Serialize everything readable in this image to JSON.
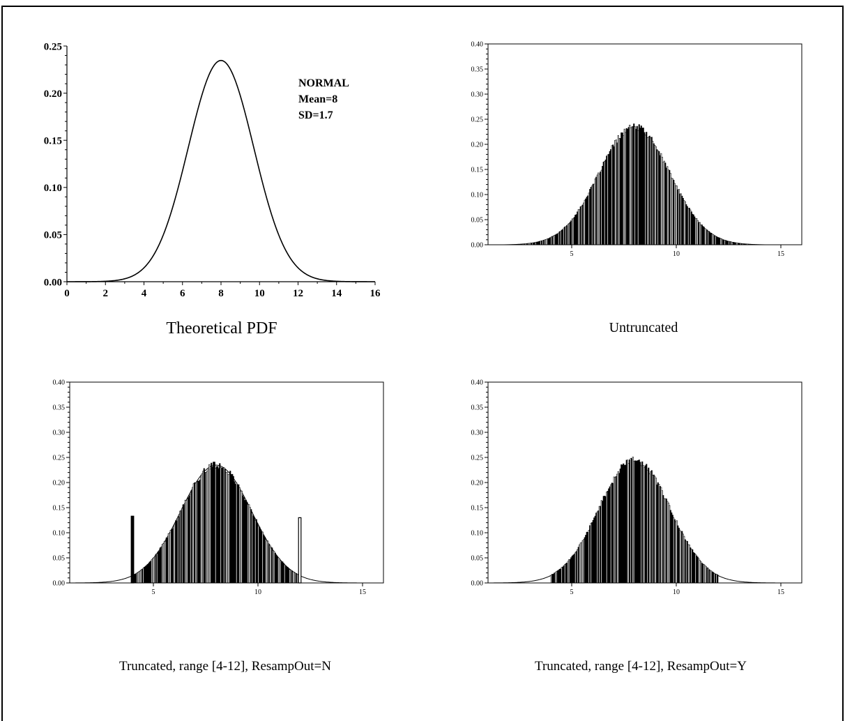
{
  "chart_data": [
    {
      "type": "line",
      "title": "Theoretical PDF",
      "xlabel": "",
      "ylabel": "",
      "xlim": [
        0,
        16
      ],
      "ylim": [
        0,
        0.25
      ],
      "xticks": [
        "0",
        "2",
        "4",
        "6",
        "8",
        "10",
        "12",
        "14",
        "16"
      ],
      "yticks": [
        "0.00",
        "0.05",
        "0.10",
        "0.15",
        "0.20",
        "0.25"
      ],
      "annotations": [
        "NORMAL",
        "Mean=8",
        "SD=1.7"
      ],
      "distribution": {
        "mean": 8,
        "sd": 1.7
      },
      "grid": false
    },
    {
      "type": "bar",
      "title": "Untruncated",
      "xlim": [
        1,
        16
      ],
      "ylim": [
        0,
        0.4
      ],
      "xticks": [
        "5",
        "10",
        "15"
      ],
      "yticks": [
        "0.00",
        "0.05",
        "0.10",
        "0.15",
        "0.20",
        "0.25",
        "0.30",
        "0.35",
        "0.40"
      ],
      "histogram": {
        "mean": 8,
        "sd": 1.7,
        "range": [
          1,
          15.5
        ],
        "truncated": false,
        "edge_spikes": []
      },
      "grid": false
    },
    {
      "type": "bar",
      "title": "Truncated, range [4-12], ResampOut=N",
      "xlim": [
        1,
        16
      ],
      "ylim": [
        0,
        0.4
      ],
      "xticks": [
        "5",
        "10",
        "15"
      ],
      "yticks": [
        "0.00",
        "0.05",
        "0.10",
        "0.15",
        "0.20",
        "0.25",
        "0.30",
        "0.35",
        "0.40"
      ],
      "histogram": {
        "mean": 8,
        "sd": 1.7,
        "range": [
          4,
          12
        ],
        "truncated": true,
        "edge_spikes": [
          {
            "x": 4.0,
            "value": 0.133
          },
          {
            "x": 12.0,
            "value": 0.13
          }
        ]
      },
      "envelope": {
        "mean": 8,
        "sd": 1.7,
        "range": [
          1,
          16
        ]
      },
      "grid": false
    },
    {
      "type": "bar",
      "title": "Truncated, range [4-12], ResampOut=Y",
      "xlim": [
        1,
        16
      ],
      "ylim": [
        0,
        0.4
      ],
      "xticks": [
        "5",
        "10",
        "15"
      ],
      "yticks": [
        "0.00",
        "0.05",
        "0.10",
        "0.15",
        "0.20",
        "0.25",
        "0.30",
        "0.35",
        "0.40"
      ],
      "histogram": {
        "mean": 8,
        "sd": 1.7,
        "range": [
          4,
          12
        ],
        "truncated": true,
        "edge_spikes": [],
        "peak": 0.245
      },
      "envelope": {
        "mean": 8,
        "sd": 1.7,
        "range": [
          1,
          16
        ]
      },
      "grid": false
    }
  ]
}
